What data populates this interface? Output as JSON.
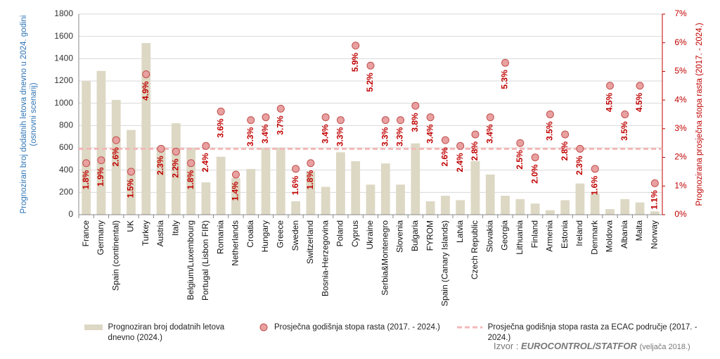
{
  "chart_data": {
    "type": "combo",
    "ylabel": "Prognoziran broj dodatnih letova dnevno u 2024. godini",
    "ylabel_note": "(osnovni scenarij)",
    "y2label": "Prognozirana prosječna stopa rasta (2017. - 2024.)",
    "categories": [
      "France",
      "Germany",
      "Spain (continental)",
      "UK",
      "Turkey",
      "Austria",
      "Italy",
      "Belgium/Luxembourg",
      "Portugal (Lisbon FIR)",
      "Romania",
      "Netherlands",
      "Croatia",
      "Hungary",
      "Greece",
      "Sweden",
      "Switzerland",
      "Bosnia-Herzegovina",
      "Poland",
      "Cyprus",
      "Ukraine",
      "Serbia&Montenegro",
      "Slovenia",
      "Bulgaria",
      "FYROM",
      "Spain (Canary Islands)",
      "Latvia",
      "Czech Republic",
      "Slovakia",
      "Georgia",
      "Lithuania",
      "Finland",
      "Armenia",
      "Estonia",
      "Ireland",
      "Denmark",
      "Moldova",
      "Albania",
      "Malta",
      "Norway"
    ],
    "series": [
      {
        "name": "Prognoziran broj dodatnih letova dnevno (2024.)",
        "type": "bar",
        "color": "#ddd8c4",
        "values": [
          1200,
          1290,
          1030,
          760,
          1540,
          610,
          820,
          600,
          290,
          520,
          330,
          410,
          600,
          600,
          120,
          390,
          250,
          560,
          480,
          270,
          460,
          270,
          640,
          120,
          170,
          130,
          480,
          360,
          170,
          140,
          100,
          40,
          130,
          280,
          190,
          50,
          140,
          110,
          30
        ]
      },
      {
        "name": "Prosječna godišnja stopa rasta (2017. - 2024.)",
        "type": "scatter",
        "axis": "y2",
        "color": "#e8a0a0",
        "label_color": "#c00000",
        "values": [
          1.8,
          1.9,
          2.6,
          1.5,
          4.9,
          2.3,
          2.2,
          1.8,
          2.4,
          3.6,
          1.4,
          3.3,
          3.4,
          3.7,
          1.6,
          1.8,
          3.4,
          3.3,
          5.9,
          5.2,
          3.3,
          3.3,
          3.8,
          3.4,
          2.6,
          2.4,
          2.8,
          3.4,
          5.3,
          2.5,
          2.0,
          3.5,
          2.8,
          2.3,
          1.6,
          4.5,
          3.5,
          4.5,
          1.1
        ],
        "value_labels": [
          "1.8%",
          "1.9%",
          "2.6%",
          "1.5%",
          "4.9%",
          "2.3%",
          "2.2%",
          "1.8%",
          "2.4%",
          "3.6%",
          "1.4%",
          "3.3%",
          "3.4%",
          "3.7%",
          "1.6%",
          "1.8%",
          "3.4%",
          "3.3%",
          "5.9%",
          "5.2%",
          "3.3%",
          "3.3%",
          "3.8%",
          "3.4%",
          "2.6%",
          "2.4%",
          "2.8%",
          "3.4%",
          "5.3%",
          "2.5%",
          "2.0%",
          "3.5%",
          "2.8%",
          "2.3%",
          "1.6%",
          "4.5%",
          "3.5%",
          "4.5%",
          "1.1%"
        ]
      }
    ],
    "reference_lines": [
      {
        "name": "Prosječna godišnja stopa rasta za ECAC područje (2017. - 2024.)",
        "value": 2.3,
        "axis": "y2",
        "color": "#f2b8b8"
      }
    ],
    "ylim": [
      0,
      1800
    ],
    "yticks": [
      0,
      200,
      400,
      600,
      800,
      1000,
      1200,
      1400,
      1600,
      1800
    ],
    "y2lim": [
      0,
      7
    ],
    "y2ticks": [
      {
        "value": 0,
        "label": "0%"
      },
      {
        "value": 1,
        "label": "1%"
      },
      {
        "value": 2,
        "label": "2%"
      },
      {
        "value": 3,
        "label": "3%"
      },
      {
        "value": 4,
        "label": "4%"
      },
      {
        "value": 5,
        "label": "5%"
      },
      {
        "value": 6,
        "label": "6%"
      },
      {
        "value": 7,
        "label": "7%"
      }
    ],
    "grid": true,
    "source": {
      "prefix": "Izvor :",
      "name": "EUROCONTROL/STATFOR",
      "date": "(veljača 2018.)"
    }
  }
}
